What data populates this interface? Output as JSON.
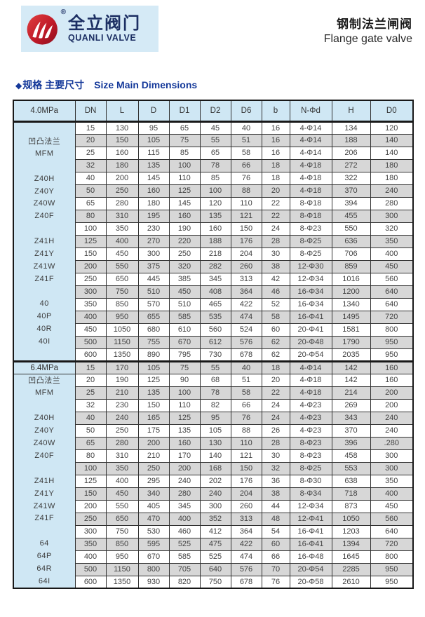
{
  "colors": {
    "panel_blue": "#cfe7f4",
    "brand_bg_blue": "#d5eaf6",
    "row_gray": "#d7d7d7",
    "row_white": "#ffffff",
    "heading_blue": "#15399a",
    "brand_navy": "#1c2f63",
    "logo_red": "#b5121f",
    "border_dark": "#181818"
  },
  "header": {
    "brand_cn": "全立阀门",
    "brand_en": "QUANLI VALVE",
    "registered_mark": "®",
    "title_cn": "钢制法兰闸阀",
    "title_en": "Flange gate valve"
  },
  "section_heading": {
    "bullet": "◆",
    "text_cn": "规格 主要尺寸",
    "text_en": "Size Main Dimensions"
  },
  "table": {
    "columns": [
      "DN",
      "L",
      "D",
      "D1",
      "D2",
      "D6",
      "b",
      "N-Φd",
      "H",
      "D0"
    ],
    "sections": [
      {
        "pressure_label": "4.0MPa",
        "side_labels": [
          {
            "text": "凹凸法兰",
            "row": 1
          },
          {
            "text": "MFM",
            "row": 2
          },
          {
            "text": "Z40H",
            "row": 4
          },
          {
            "text": "Z40Y",
            "row": 5
          },
          {
            "text": "Z40W",
            "row": 6
          },
          {
            "text": "Z40F",
            "row": 7
          },
          {
            "text": "Z41H",
            "row": 9
          },
          {
            "text": "Z41Y",
            "row": 10
          },
          {
            "text": "Z41W",
            "row": 11
          },
          {
            "text": "Z41F",
            "row": 12
          },
          {
            "text": "40",
            "row": 14
          },
          {
            "text": "40P",
            "row": 15
          },
          {
            "text": "40R",
            "row": 16
          },
          {
            "text": "40I",
            "row": 17
          }
        ],
        "rows": [
          [
            "15",
            "130",
            "95",
            "65",
            "45",
            "40",
            "16",
            "4-Φ14",
            "134",
            "120"
          ],
          [
            "20",
            "150",
            "105",
            "75",
            "55",
            "51",
            "16",
            "4-Φ14",
            "188",
            "140"
          ],
          [
            "25",
            "160",
            "115",
            "85",
            "65",
            "58",
            "16",
            "4-Φ14",
            "206",
            "140"
          ],
          [
            "32",
            "180",
            "135",
            "100",
            "78",
            "66",
            "18",
            "4-Φ18",
            "272",
            "180"
          ],
          [
            "40",
            "200",
            "145",
            "110",
            "85",
            "76",
            "18",
            "4-Φ18",
            "322",
            "180"
          ],
          [
            "50",
            "250",
            "160",
            "125",
            "100",
            "88",
            "20",
            "4-Φ18",
            "370",
            "240"
          ],
          [
            "65",
            "280",
            "180",
            "145",
            "120",
            "110",
            "22",
            "8-Φ18",
            "394",
            "280"
          ],
          [
            "80",
            "310",
            "195",
            "160",
            "135",
            "121",
            "22",
            "8-Φ18",
            "455",
            "300"
          ],
          [
            "100",
            "350",
            "230",
            "190",
            "160",
            "150",
            "24",
            "8-Φ23",
            "550",
            "320"
          ],
          [
            "125",
            "400",
            "270",
            "220",
            "188",
            "176",
            "28",
            "8-Φ25",
            "636",
            "350"
          ],
          [
            "150",
            "450",
            "300",
            "250",
            "218",
            "204",
            "30",
            "8-Φ25",
            "706",
            "400"
          ],
          [
            "200",
            "550",
            "375",
            "320",
            "282",
            "260",
            "38",
            "12-Φ30",
            "859",
            "450"
          ],
          [
            "250",
            "650",
            "445",
            "385",
            "345",
            "313",
            "42",
            "12-Φ34",
            "1016",
            "560"
          ],
          [
            "300",
            "750",
            "510",
            "450",
            "408",
            "364",
            "46",
            "16-Φ34",
            "1200",
            "640"
          ],
          [
            "350",
            "850",
            "570",
            "510",
            "465",
            "422",
            "52",
            "16-Φ34",
            "1340",
            "640"
          ],
          [
            "400",
            "950",
            "655",
            "585",
            "535",
            "474",
            "58",
            "16-Φ41",
            "1495",
            "720"
          ],
          [
            "450",
            "1050",
            "680",
            "610",
            "560",
            "524",
            "60",
            "20-Φ41",
            "1581",
            "800"
          ],
          [
            "500",
            "1150",
            "755",
            "670",
            "612",
            "576",
            "62",
            "20-Φ48",
            "1790",
            "950"
          ],
          [
            "600",
            "1350",
            "890",
            "795",
            "730",
            "678",
            "62",
            "20-Φ54",
            "2035",
            "950"
          ]
        ]
      },
      {
        "pressure_label": "6.4MPa",
        "side_labels": [
          {
            "text": "凹凸法兰",
            "row": 0
          },
          {
            "text": "MFM",
            "row": 1
          },
          {
            "text": "Z40H",
            "row": 3
          },
          {
            "text": "Z40Y",
            "row": 4
          },
          {
            "text": "Z40W",
            "row": 5
          },
          {
            "text": "Z40F",
            "row": 6
          },
          {
            "text": "Z41H",
            "row": 8
          },
          {
            "text": "Z41Y",
            "row": 9
          },
          {
            "text": "Z41W",
            "row": 10
          },
          {
            "text": "Z41F",
            "row": 11
          },
          {
            "text": "64",
            "row": 13
          },
          {
            "text": "64P",
            "row": 14
          },
          {
            "text": "64R",
            "row": 15
          },
          {
            "text": "64I",
            "row": 16
          }
        ],
        "rows": [
          [
            "15",
            "170",
            "105",
            "75",
            "55",
            "40",
            "18",
            "4-Φ14",
            "142",
            "160"
          ],
          [
            "20",
            "190",
            "125",
            "90",
            "68",
            "51",
            "20",
            "4-Φ18",
            "142",
            "160"
          ],
          [
            "25",
            "210",
            "135",
            "100",
            "78",
            "58",
            "22",
            "4-Φ18",
            "214",
            "200"
          ],
          [
            "32",
            "230",
            "150",
            "110",
            "82",
            "66",
            "24",
            "4-Φ23",
            "269",
            "200"
          ],
          [
            "40",
            "240",
            "165",
            "125",
            "95",
            "76",
            "24",
            "4-Φ23",
            "343",
            "240"
          ],
          [
            "50",
            "250",
            "175",
            "135",
            "105",
            "88",
            "26",
            "4-Φ23",
            "370",
            "240"
          ],
          [
            "65",
            "280",
            "200",
            "160",
            "130",
            "110",
            "28",
            "8-Φ23",
            "396",
            ".280"
          ],
          [
            "80",
            "310",
            "210",
            "170",
            "140",
            "121",
            "30",
            "8-Φ23",
            "458",
            "300"
          ],
          [
            "100",
            "350",
            "250",
            "200",
            "168",
            "150",
            "32",
            "8-Φ25",
            "553",
            "300"
          ],
          [
            "125",
            "400",
            "295",
            "240",
            "202",
            "176",
            "36",
            "8-Φ30",
            "638",
            "350"
          ],
          [
            "150",
            "450",
            "340",
            "280",
            "240",
            "204",
            "38",
            "8-Φ34",
            "718",
            "400"
          ],
          [
            "200",
            "550",
            "405",
            "345",
            "300",
            "260",
            "44",
            "12-Φ34",
            "873",
            "450"
          ],
          [
            "250",
            "650",
            "470",
            "400",
            "352",
            "313",
            "48",
            "12-Φ41",
            "1050",
            "560"
          ],
          [
            "300",
            "750",
            "530",
            "460",
            "412",
            "364",
            "54",
            "16-Φ41",
            "1203",
            "640"
          ],
          [
            "350",
            "850",
            "595",
            "525",
            "475",
            "422",
            "60",
            "16-Φ41",
            "1394",
            "720"
          ],
          [
            "400",
            "950",
            "670",
            "585",
            "525",
            "474",
            "66",
            "16-Φ48",
            "1645",
            "800"
          ],
          [
            "500",
            "1150",
            "800",
            "705",
            "640",
            "576",
            "70",
            "20-Φ54",
            "2285",
            "950"
          ],
          [
            "600",
            "1350",
            "930",
            "820",
            "750",
            "678",
            "76",
            "20-Φ58",
            "2610",
            "950"
          ]
        ]
      }
    ]
  }
}
